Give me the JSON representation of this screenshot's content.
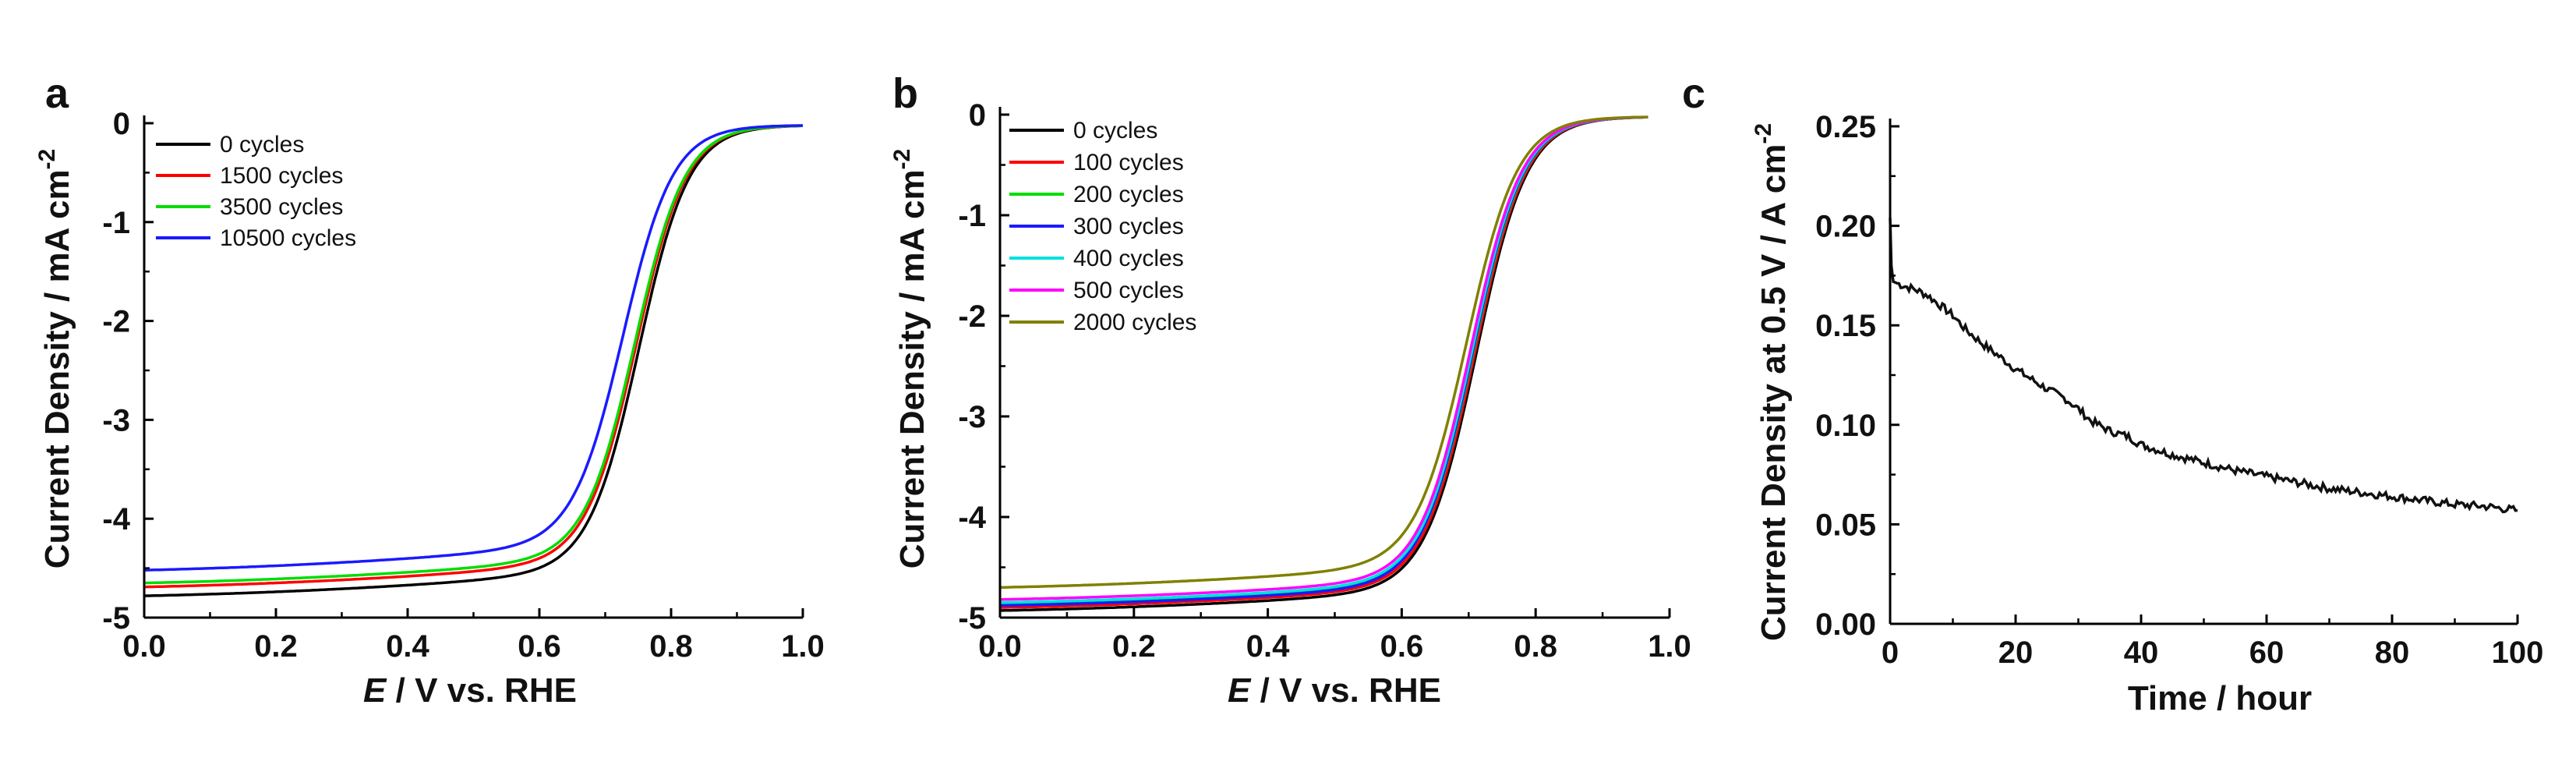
{
  "panels": [
    {
      "letter": "a",
      "chart_data": {
        "type": "line",
        "xlabel_italic": "E",
        "xlabel_rest": " / V vs. RHE",
        "ylabel": "Current Density / mA cm",
        "ylabel_sup": "-2",
        "xlim": [
          0.0,
          1.0
        ],
        "ylim": [
          -5,
          0
        ],
        "xticks": [
          "0.0",
          "0.2",
          "0.4",
          "0.6",
          "0.8",
          "1.0"
        ],
        "yticks": [
          "0",
          "-1",
          "-2",
          "-3",
          "-4",
          "-5"
        ],
        "legend_position": "top-left",
        "series": [
          {
            "name": "0 cycles",
            "color": "#000000",
            "plateau": -4.78,
            "slope": 0.55,
            "half_wave": 0.752
          },
          {
            "name": "1500 cycles",
            "color": "#ff0000",
            "plateau": -4.69,
            "slope": 0.55,
            "half_wave": 0.748
          },
          {
            "name": "3500 cycles",
            "color": "#00dd00",
            "plateau": -4.65,
            "slope": 0.55,
            "half_wave": 0.746
          },
          {
            "name": "10500 cycles",
            "color": "#1a1aff",
            "plateau": -4.52,
            "slope": 0.6,
            "half_wave": 0.728
          }
        ]
      }
    },
    {
      "letter": "b",
      "chart_data": {
        "type": "line",
        "xlabel_italic": "E",
        "xlabel_rest": " / V vs. RHE",
        "ylabel": "Current Density / mA cm",
        "ylabel_sup": "-2",
        "xlim": [
          0.0,
          1.0
        ],
        "ylim": [
          -5,
          0
        ],
        "xticks": [
          "0.0",
          "0.2",
          "0.4",
          "0.6",
          "0.8",
          "1.0"
        ],
        "yticks": [
          "0",
          "-1",
          "-2",
          "-3",
          "-4",
          "-5"
        ],
        "legend_position": "top-left",
        "series": [
          {
            "name": "0 cycles",
            "color": "#000000",
            "plateau": -4.93,
            "slope": 0.5,
            "half_wave": 0.712
          },
          {
            "name": "100 cycles",
            "color": "#ff0000",
            "plateau": -4.9,
            "slope": 0.5,
            "half_wave": 0.71
          },
          {
            "name": "200 cycles",
            "color": "#00dd00",
            "plateau": -4.87,
            "slope": 0.5,
            "half_wave": 0.708
          },
          {
            "name": "300 cycles",
            "color": "#1a1aff",
            "plateau": -4.88,
            "slope": 0.5,
            "half_wave": 0.707
          },
          {
            "name": "400 cycles",
            "color": "#00e0e0",
            "plateau": -4.85,
            "slope": 0.5,
            "half_wave": 0.706
          },
          {
            "name": "500 cycles",
            "color": "#ff00ff",
            "plateau": -4.82,
            "slope": 0.5,
            "half_wave": 0.704
          },
          {
            "name": "2000 cycles",
            "color": "#808000",
            "plateau": -4.7,
            "slope": 0.55,
            "half_wave": 0.698
          }
        ]
      }
    },
    {
      "letter": "c",
      "chart_data": {
        "type": "line",
        "xlabel": "Time / hour",
        "ylabel": "Current Density at 0.5 V / A cm",
        "ylabel_sup": "-2",
        "xlim": [
          0,
          100
        ],
        "ylim": [
          0.0,
          0.25
        ],
        "xticks": [
          "0",
          "20",
          "40",
          "60",
          "80",
          "100"
        ],
        "yticks": [
          "0.00",
          "0.05",
          "0.10",
          "0.15",
          "0.20",
          "0.25"
        ],
        "series": [
          {
            "color": "#111111",
            "x": [
              0,
              0.2,
              0.5,
              2,
              4,
              6,
              8,
              10,
              12,
              15,
              18,
              20,
              22,
              25,
              28,
              30,
              32,
              35,
              38,
              40,
              45,
              50,
              55,
              60,
              65,
              70,
              75,
              80,
              85,
              90,
              95,
              100
            ],
            "y": [
              0.204,
              0.18,
              0.172,
              0.17,
              0.168,
              0.165,
              0.16,
              0.155,
              0.148,
              0.14,
              0.133,
              0.128,
              0.124,
              0.118,
              0.113,
              0.108,
              0.102,
              0.097,
              0.094,
              0.09,
              0.085,
              0.081,
              0.077,
              0.074,
              0.071,
              0.068,
              0.066,
              0.064,
              0.062,
              0.06,
              0.059,
              0.057
            ]
          }
        ]
      }
    }
  ]
}
